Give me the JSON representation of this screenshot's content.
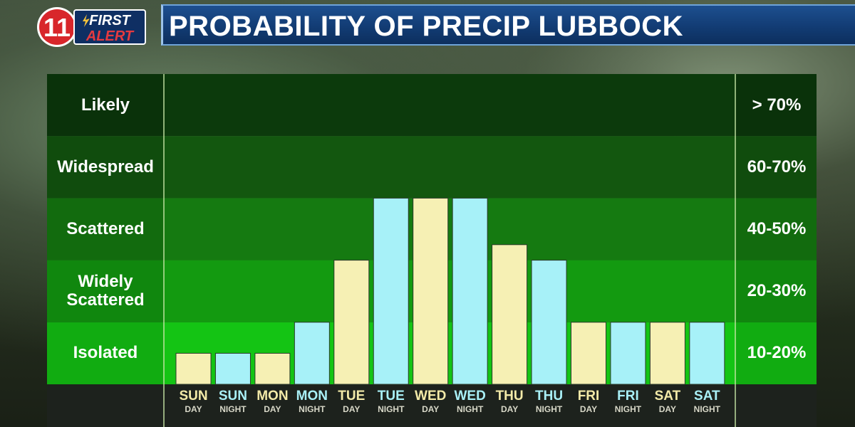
{
  "header": {
    "logo_number": "11",
    "logo_word1": "FIRST",
    "logo_word2": "ALERT",
    "title": "PROBABILITY OF PRECIP LUBBOCK"
  },
  "colors": {
    "day_bar": "#f6f0b4",
    "night_bar": "#a7f1f8",
    "bands": [
      "#0c3a0c",
      "#13570f",
      "#157a11",
      "#139a10",
      "#14c414"
    ],
    "axis_strip": "#1d221d"
  },
  "chart_data": {
    "type": "bar",
    "title": "PROBABILITY OF PRECIP LUBBOCK",
    "bands": [
      {
        "label": "Likely",
        "range": "> 70%"
      },
      {
        "label": "Widespread",
        "range": "60-70%"
      },
      {
        "label": "Scattered",
        "range": "40-50%"
      },
      {
        "label": "Widely Scattered",
        "range": "20-30%"
      },
      {
        "label": "Isolated",
        "range": "10-20%"
      }
    ],
    "categories": [
      {
        "day": "SUN",
        "period": "DAY"
      },
      {
        "day": "SUN",
        "period": "NIGHT"
      },
      {
        "day": "MON",
        "period": "DAY"
      },
      {
        "day": "MON",
        "period": "NIGHT"
      },
      {
        "day": "TUE",
        "period": "DAY"
      },
      {
        "day": "TUE",
        "period": "NIGHT"
      },
      {
        "day": "WED",
        "period": "DAY"
      },
      {
        "day": "WED",
        "period": "NIGHT"
      },
      {
        "day": "THU",
        "period": "DAY"
      },
      {
        "day": "THU",
        "period": "NIGHT"
      },
      {
        "day": "FRI",
        "period": "DAY"
      },
      {
        "day": "FRI",
        "period": "NIGHT"
      },
      {
        "day": "SAT",
        "period": "DAY"
      },
      {
        "day": "SAT",
        "period": "NIGHT"
      }
    ],
    "values": [
      0.5,
      0.5,
      0.5,
      1.0,
      2.0,
      3.0,
      3.0,
      3.0,
      2.25,
      2.0,
      1.0,
      1.0,
      1.0,
      1.0
    ],
    "value_scale": "band levels (0 = bottom, 5 = top of Likely)",
    "ylim": [
      0,
      5
    ],
    "grid": false
  }
}
